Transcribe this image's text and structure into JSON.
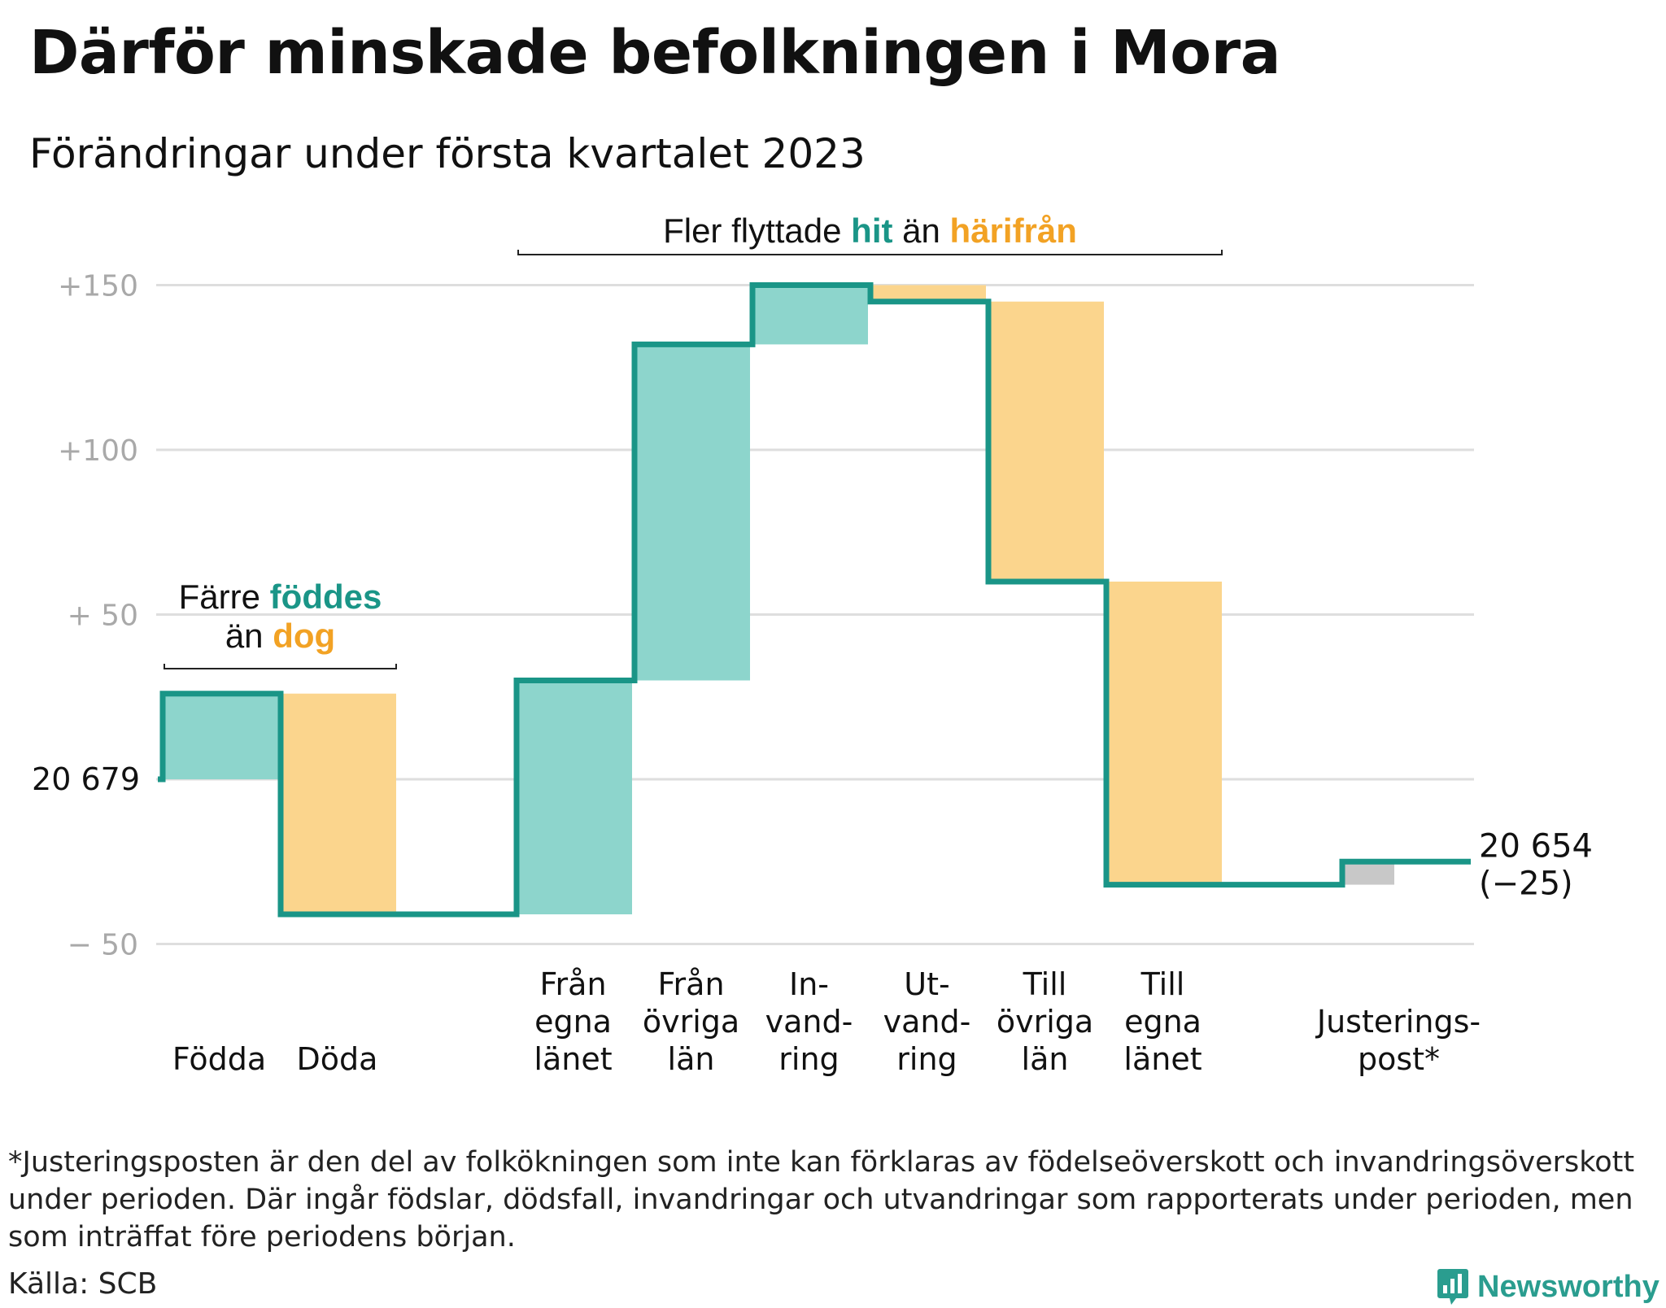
{
  "title": "Därför minskade befolkningen i Mora",
  "subtitle": "Förändringar under första kvartalet 2023",
  "colors": {
    "inflow": "#8dd5cc",
    "outflow": "#fbd58d",
    "adjust": "#c8c8c8",
    "line": "#1a9587",
    "grid": "#dedede",
    "accent_teal": "#1a9587",
    "accent_orange": "#f2a224",
    "tick": "#a9a9a9"
  },
  "chart_data": {
    "type": "waterfall",
    "baseline_label": "20 679",
    "end_label": "20 654",
    "end_change_label": "(−25)",
    "y_ticks": [
      {
        "value": 150,
        "label": "+150"
      },
      {
        "value": 100,
        "label": "+100"
      },
      {
        "value": 50,
        "label": "+ 50"
      },
      {
        "value": 0,
        "label": ""
      },
      {
        "value": -50,
        "label": "− 50"
      }
    ],
    "ylim": [
      -50,
      150
    ],
    "steps": [
      {
        "label": [
          "Födda"
        ],
        "start": 0,
        "end": 26,
        "kind": "inflow"
      },
      {
        "label": [
          "Döda"
        ],
        "start": 26,
        "end": -41,
        "kind": "outflow"
      },
      {
        "label": [],
        "start": -41,
        "end": -41,
        "kind": "none"
      },
      {
        "label": [
          "Från",
          "egna",
          "länet"
        ],
        "start": -41,
        "end": 30,
        "kind": "inflow"
      },
      {
        "label": [
          "Från",
          "övriga",
          "län"
        ],
        "start": 30,
        "end": 132,
        "kind": "inflow"
      },
      {
        "label": [
          "In-",
          "vand-",
          "ring"
        ],
        "start": 132,
        "end": 150,
        "kind": "inflow"
      },
      {
        "label": [
          "Ut-",
          "vand-",
          "ring"
        ],
        "start": 150,
        "end": 145,
        "kind": "outflow"
      },
      {
        "label": [
          "Till",
          "övriga",
          "län"
        ],
        "start": 145,
        "end": 60,
        "kind": "outflow"
      },
      {
        "label": [
          "Till",
          "egna",
          "länet"
        ],
        "start": 60,
        "end": -32,
        "kind": "outflow"
      },
      {
        "label": [],
        "start": -32,
        "end": -32,
        "kind": "none"
      },
      {
        "label": [
          "Justerings-",
          "post*"
        ],
        "start": -32,
        "end": -25,
        "kind": "adjust"
      }
    ],
    "annotations": [
      {
        "parts": [
          {
            "text": "Färre ",
            "style": "plain"
          },
          {
            "text": "föddes",
            "style": "teal"
          }
        ],
        "line2": [
          {
            "text": "än ",
            "style": "plain"
          },
          {
            "text": "dog",
            "style": "orange"
          }
        ],
        "span": [
          0,
          1
        ]
      },
      {
        "parts": [
          {
            "text": "Fler flyttade ",
            "style": "plain"
          },
          {
            "text": "hit",
            "style": "teal"
          },
          {
            "text": " än ",
            "style": "plain"
          },
          {
            "text": "härifrån",
            "style": "orange"
          }
        ],
        "span": [
          3,
          8
        ]
      }
    ]
  },
  "footnote": "*Justeringsposten är den del av folkökningen som inte kan förklaras av födelseöverskott och invandringsöverskott under perioden. Där ingår födslar, dödsfall, invandringar och utvandringar som rapporterats under perioden, men som inträffat före periodens början.",
  "source": "Källa: SCB",
  "brand": {
    "name": "Newsworthy",
    "icon": "bar-chart-speech-bubble-icon"
  }
}
